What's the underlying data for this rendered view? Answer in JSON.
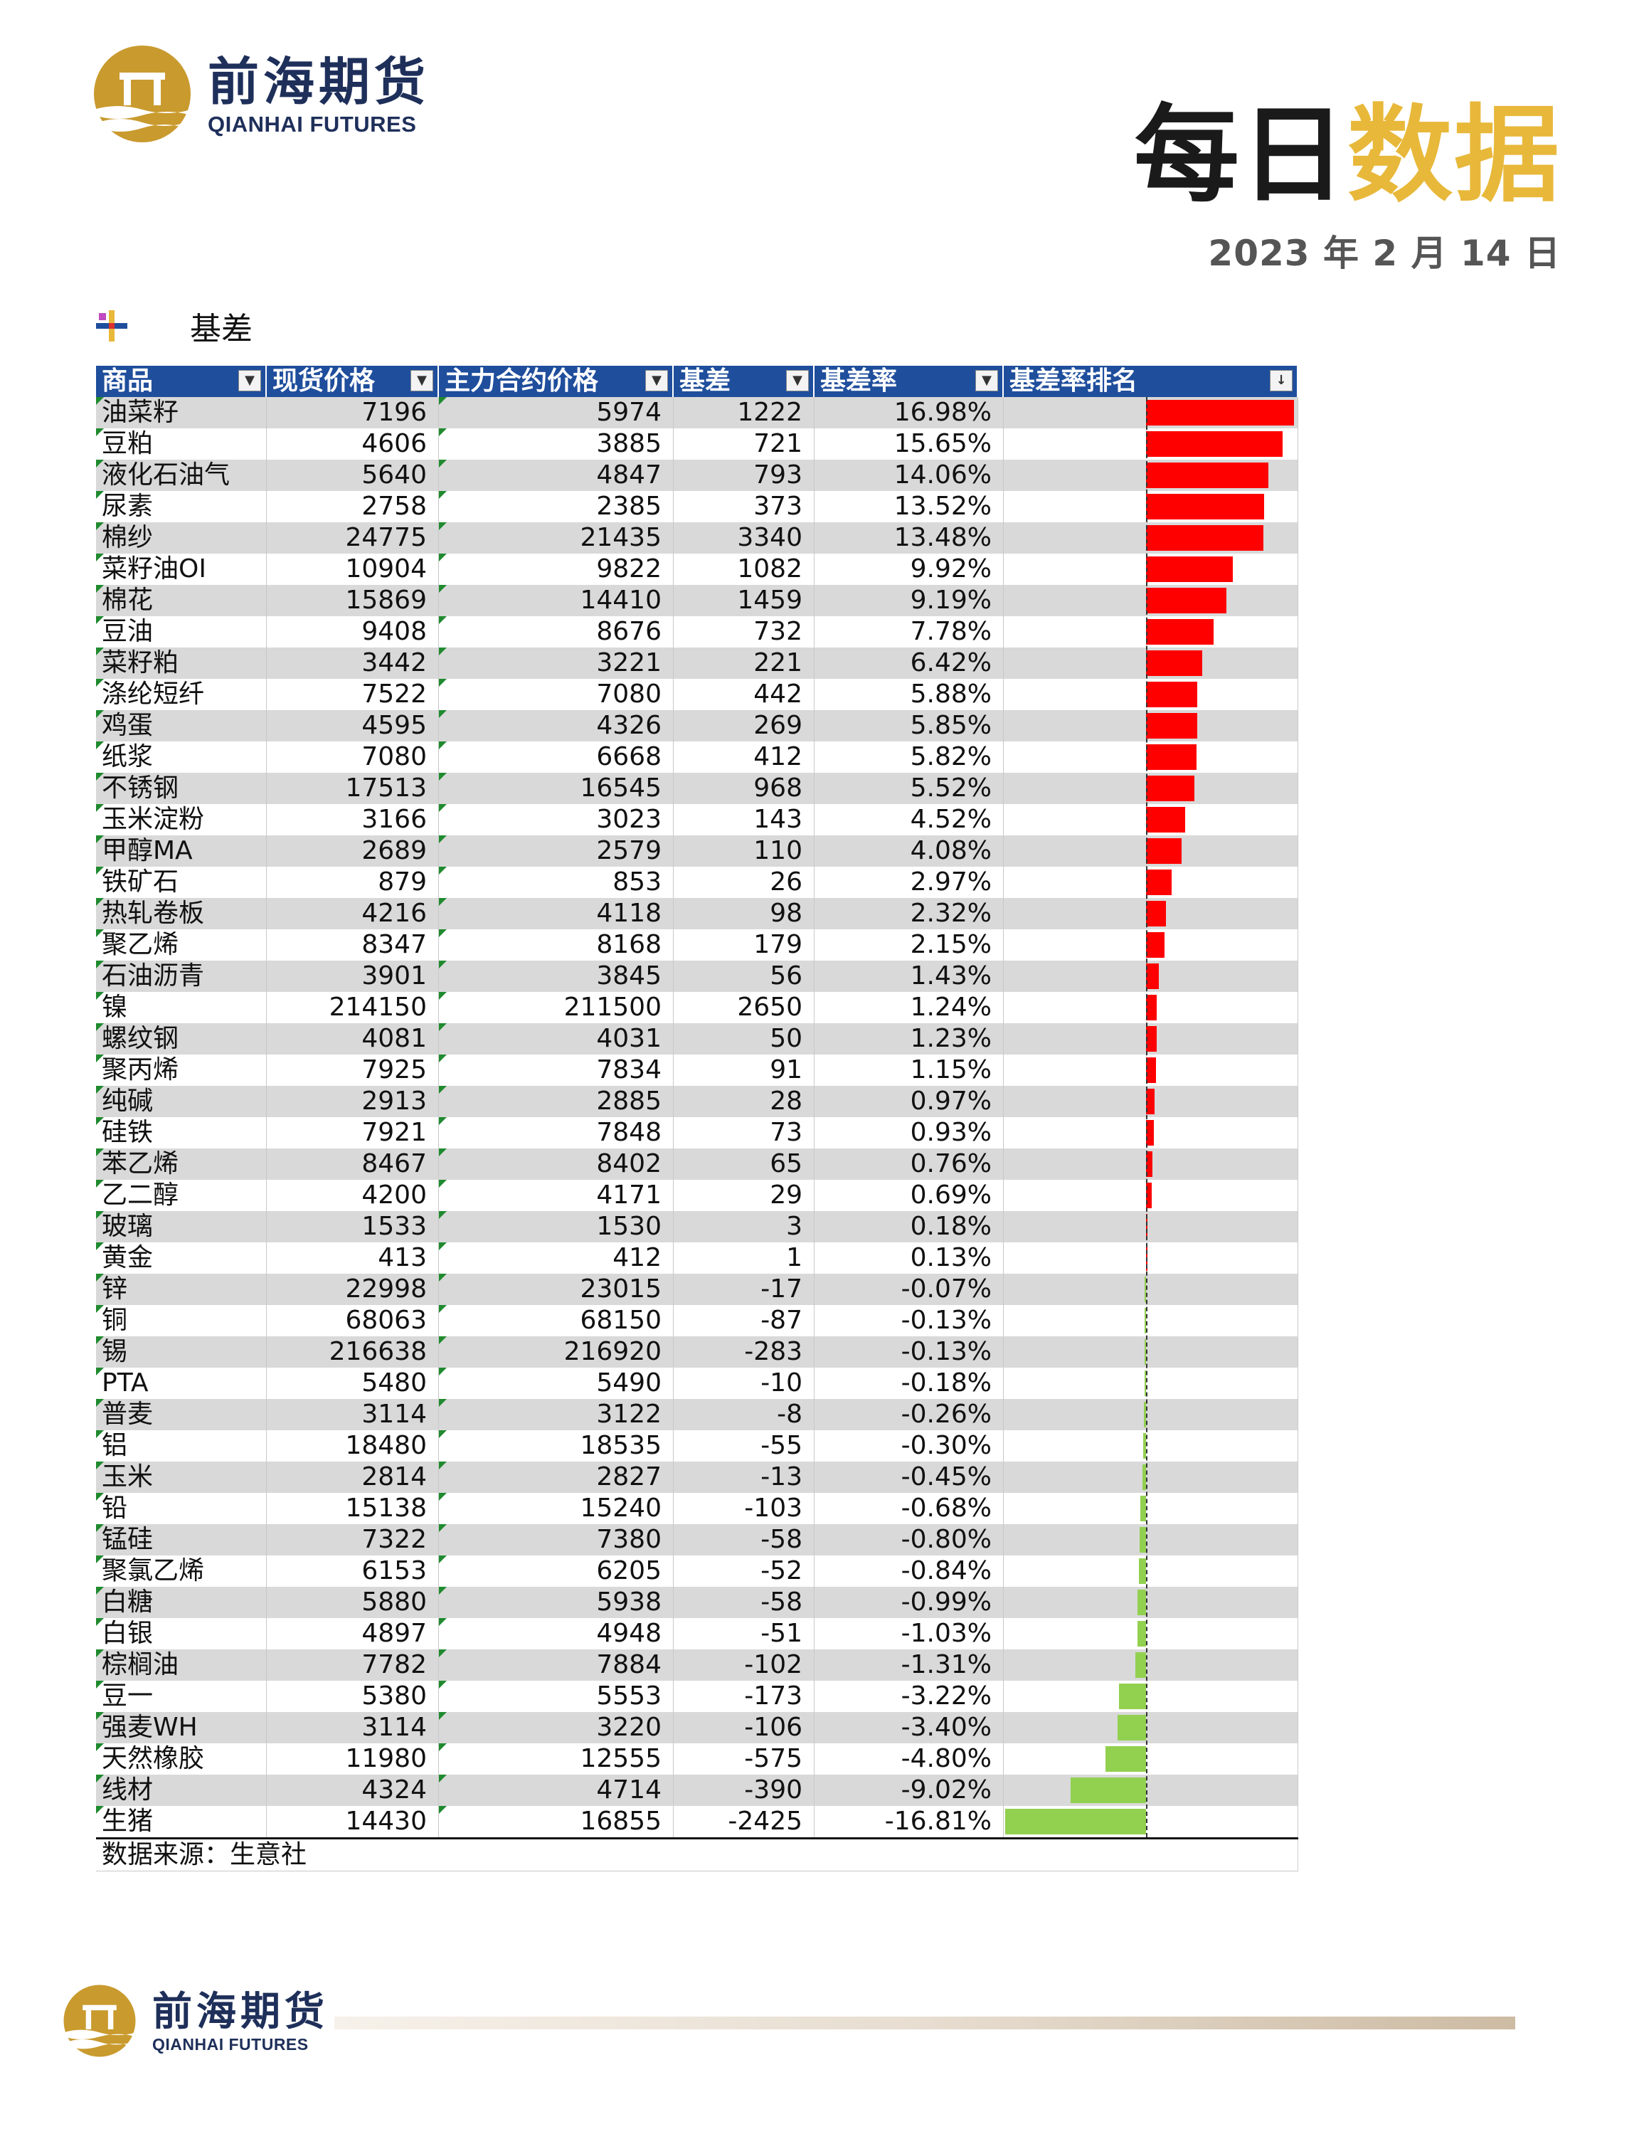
{
  "brand": {
    "cn": "前海期货",
    "en": "QIANHAI FUTURES",
    "gold": "#c99a2e",
    "navy": "#1e2f5a"
  },
  "title": {
    "part1": "每日",
    "part2": "数据",
    "accent": "#e8b83a"
  },
  "date": "2023 年 2 月 14 日",
  "section": {
    "label": "基差"
  },
  "table": {
    "headers": [
      "商品",
      "现货价格",
      "主力合约价格",
      "基差",
      "基差率",
      "基差率排名"
    ],
    "rows": [
      {
        "name": "油菜籽",
        "spot": "7196",
        "main": "5974",
        "basis": "1222",
        "rate": "16.98%",
        "r": 16.98
      },
      {
        "name": "豆粕",
        "spot": "4606",
        "main": "3885",
        "basis": "721",
        "rate": "15.65%",
        "r": 15.65
      },
      {
        "name": "液化石油气",
        "spot": "5640",
        "main": "4847",
        "basis": "793",
        "rate": "14.06%",
        "r": 14.06
      },
      {
        "name": "尿素",
        "spot": "2758",
        "main": "2385",
        "basis": "373",
        "rate": "13.52%",
        "r": 13.52
      },
      {
        "name": "棉纱",
        "spot": "24775",
        "main": "21435",
        "basis": "3340",
        "rate": "13.48%",
        "r": 13.48
      },
      {
        "name": "菜籽油OI",
        "spot": "10904",
        "main": "9822",
        "basis": "1082",
        "rate": "9.92%",
        "r": 9.92
      },
      {
        "name": "棉花",
        "spot": "15869",
        "main": "14410",
        "basis": "1459",
        "rate": "9.19%",
        "r": 9.19
      },
      {
        "name": "豆油",
        "spot": "9408",
        "main": "8676",
        "basis": "732",
        "rate": "7.78%",
        "r": 7.78
      },
      {
        "name": "菜籽粕",
        "spot": "3442",
        "main": "3221",
        "basis": "221",
        "rate": "6.42%",
        "r": 6.42
      },
      {
        "name": "涤纶短纤",
        "spot": "7522",
        "main": "7080",
        "basis": "442",
        "rate": "5.88%",
        "r": 5.88
      },
      {
        "name": "鸡蛋",
        "spot": "4595",
        "main": "4326",
        "basis": "269",
        "rate": "5.85%",
        "r": 5.85
      },
      {
        "name": "纸浆",
        "spot": "7080",
        "main": "6668",
        "basis": "412",
        "rate": "5.82%",
        "r": 5.82
      },
      {
        "name": "不锈钢",
        "spot": "17513",
        "main": "16545",
        "basis": "968",
        "rate": "5.52%",
        "r": 5.52
      },
      {
        "name": "玉米淀粉",
        "spot": "3166",
        "main": "3023",
        "basis": "143",
        "rate": "4.52%",
        "r": 4.52
      },
      {
        "name": "甲醇MA",
        "spot": "2689",
        "main": "2579",
        "basis": "110",
        "rate": "4.08%",
        "r": 4.08
      },
      {
        "name": "铁矿石",
        "spot": "879",
        "main": "853",
        "basis": "26",
        "rate": "2.97%",
        "r": 2.97
      },
      {
        "name": "热轧卷板",
        "spot": "4216",
        "main": "4118",
        "basis": "98",
        "rate": "2.32%",
        "r": 2.32
      },
      {
        "name": "聚乙烯",
        "spot": "8347",
        "main": "8168",
        "basis": "179",
        "rate": "2.15%",
        "r": 2.15
      },
      {
        "name": "石油沥青",
        "spot": "3901",
        "main": "3845",
        "basis": "56",
        "rate": "1.43%",
        "r": 1.43
      },
      {
        "name": "镍",
        "spot": "214150",
        "main": "211500",
        "basis": "2650",
        "rate": "1.24%",
        "r": 1.24
      },
      {
        "name": "螺纹钢",
        "spot": "4081",
        "main": "4031",
        "basis": "50",
        "rate": "1.23%",
        "r": 1.23
      },
      {
        "name": "聚丙烯",
        "spot": "7925",
        "main": "7834",
        "basis": "91",
        "rate": "1.15%",
        "r": 1.15
      },
      {
        "name": "纯碱",
        "spot": "2913",
        "main": "2885",
        "basis": "28",
        "rate": "0.97%",
        "r": 0.97
      },
      {
        "name": "硅铁",
        "spot": "7921",
        "main": "7848",
        "basis": "73",
        "rate": "0.93%",
        "r": 0.93
      },
      {
        "name": "苯乙烯",
        "spot": "8467",
        "main": "8402",
        "basis": "65",
        "rate": "0.76%",
        "r": 0.76
      },
      {
        "name": "乙二醇",
        "spot": "4200",
        "main": "4171",
        "basis": "29",
        "rate": "0.69%",
        "r": 0.69
      },
      {
        "name": "玻璃",
        "spot": "1533",
        "main": "1530",
        "basis": "3",
        "rate": "0.18%",
        "r": 0.18
      },
      {
        "name": "黄金",
        "spot": "413",
        "main": "412",
        "basis": "1",
        "rate": "0.13%",
        "r": 0.13
      },
      {
        "name": "锌",
        "spot": "22998",
        "main": "23015",
        "basis": "-17",
        "rate": "-0.07%",
        "r": -0.07
      },
      {
        "name": "铜",
        "spot": "68063",
        "main": "68150",
        "basis": "-87",
        "rate": "-0.13%",
        "r": -0.13
      },
      {
        "name": "锡",
        "spot": "216638",
        "main": "216920",
        "basis": "-283",
        "rate": "-0.13%",
        "r": -0.13
      },
      {
        "name": "PTA",
        "spot": "5480",
        "main": "5490",
        "basis": "-10",
        "rate": "-0.18%",
        "r": -0.18
      },
      {
        "name": "普麦",
        "spot": "3114",
        "main": "3122",
        "basis": "-8",
        "rate": "-0.26%",
        "r": -0.26
      },
      {
        "name": "铝",
        "spot": "18480",
        "main": "18535",
        "basis": "-55",
        "rate": "-0.30%",
        "r": -0.3
      },
      {
        "name": "玉米",
        "spot": "2814",
        "main": "2827",
        "basis": "-13",
        "rate": "-0.45%",
        "r": -0.45
      },
      {
        "name": "铅",
        "spot": "15138",
        "main": "15240",
        "basis": "-103",
        "rate": "-0.68%",
        "r": -0.68
      },
      {
        "name": "锰硅",
        "spot": "7322",
        "main": "7380",
        "basis": "-58",
        "rate": "-0.80%",
        "r": -0.8
      },
      {
        "name": "聚氯乙烯",
        "spot": "6153",
        "main": "6205",
        "basis": "-52",
        "rate": "-0.84%",
        "r": -0.84
      },
      {
        "name": "白糖",
        "spot": "5880",
        "main": "5938",
        "basis": "-58",
        "rate": "-0.99%",
        "r": -0.99
      },
      {
        "name": "白银",
        "spot": "4897",
        "main": "4948",
        "basis": "-51",
        "rate": "-1.03%",
        "r": -1.03
      },
      {
        "name": "棕榈油",
        "spot": "7782",
        "main": "7884",
        "basis": "-102",
        "rate": "-1.31%",
        "r": -1.31
      },
      {
        "name": "豆一",
        "spot": "5380",
        "main": "5553",
        "basis": "-173",
        "rate": "-3.22%",
        "r": -3.22
      },
      {
        "name": "强麦WH",
        "spot": "3114",
        "main": "3220",
        "basis": "-106",
        "rate": "-3.40%",
        "r": -3.4
      },
      {
        "name": "天然橡胶",
        "spot": "11980",
        "main": "12555",
        "basis": "-575",
        "rate": "-4.80%",
        "r": -4.8
      },
      {
        "name": "线材",
        "spot": "4324",
        "main": "4714",
        "basis": "-390",
        "rate": "-9.02%",
        "r": -9.02
      },
      {
        "name": "生猪",
        "spot": "14430",
        "main": "16855",
        "basis": "-2425",
        "rate": "-16.81%",
        "r": -16.81
      }
    ],
    "source": "数据来源：生意社",
    "bar_colors": {
      "positive": "#ff0000",
      "negative": "#92d050"
    }
  }
}
